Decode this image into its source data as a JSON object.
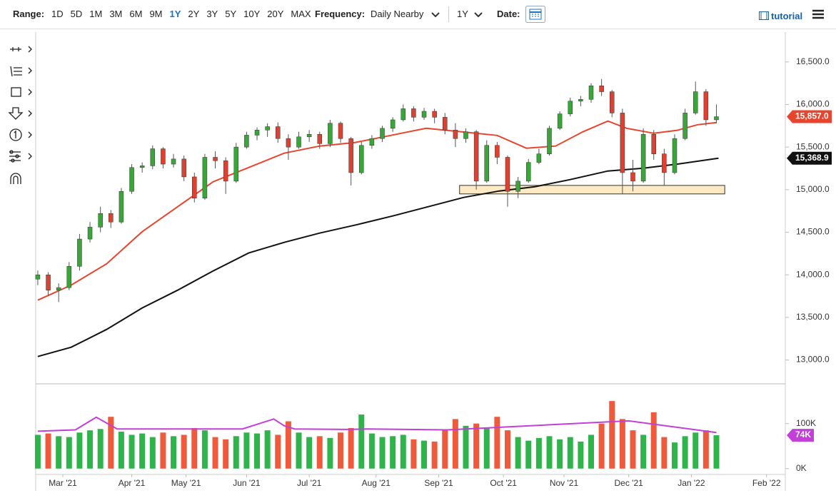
{
  "toolbar": {
    "range_label": "Range:",
    "ranges": [
      "1D",
      "5D",
      "1M",
      "3M",
      "6M",
      "9M",
      "1Y",
      "2Y",
      "3Y",
      "5Y",
      "10Y",
      "20Y",
      "MAX"
    ],
    "active_range": "1Y",
    "frequency_label": "Frequency:",
    "frequency": "Daily Nearby",
    "period": "1Y",
    "date_label": "Date:",
    "tutorial": "tutorial"
  },
  "chart_data": [
    {
      "type": "candlestick",
      "x": [
        2,
        7,
        12,
        17,
        22,
        27,
        32,
        37,
        42,
        47,
        52,
        57,
        62,
        67,
        72,
        77,
        82,
        87,
        92,
        97,
        102,
        107,
        112,
        117,
        122,
        127,
        132,
        137,
        142,
        147,
        152,
        157,
        162,
        167,
        172,
        177,
        182,
        187,
        192,
        197,
        202,
        207,
        212,
        217,
        222,
        227,
        232,
        237,
        242,
        247,
        252,
        257,
        262,
        267,
        272,
        277,
        282,
        287,
        292,
        297,
        302,
        307,
        312,
        317,
        322,
        327
      ],
      "open": [
        13950,
        14000,
        13820,
        13850,
        14100,
        14420,
        14560,
        14720,
        14620,
        14980,
        15260,
        15280,
        15480,
        15300,
        15360,
        15150,
        14900,
        15380,
        15340,
        15100,
        15500,
        15640,
        15700,
        15740,
        15600,
        15500,
        15620,
        15650,
        15540,
        15780,
        15600,
        15200,
        15520,
        15600,
        15720,
        15820,
        15950,
        15850,
        15920,
        15850,
        15700,
        15600,
        15680,
        15100,
        15520,
        15380,
        14980,
        15100,
        15320,
        15420,
        15720,
        15890,
        16040,
        16060,
        16220,
        16150,
        15900,
        15200,
        15100,
        15650,
        15420,
        15200,
        15600,
        15900,
        16150,
        15820
      ],
      "high": [
        14050,
        14030,
        13900,
        14150,
        14480,
        14620,
        14800,
        14760,
        15020,
        15300,
        15320,
        15520,
        15500,
        15420,
        15400,
        15200,
        15420,
        15450,
        15380,
        15550,
        15680,
        15730,
        15780,
        15790,
        15650,
        15680,
        15700,
        15680,
        15820,
        15800,
        15620,
        15560,
        15640,
        15750,
        15850,
        16000,
        15980,
        15960,
        15950,
        15900,
        15780,
        15720,
        15700,
        15580,
        15560,
        15400,
        15150,
        15360,
        15480,
        15750,
        15920,
        16080,
        16100,
        16250,
        16300,
        16170,
        15950,
        15350,
        15720,
        15700,
        15480,
        15650,
        15950,
        16270,
        16180,
        16000
      ],
      "low": [
        13880,
        13750,
        13680,
        13820,
        14050,
        14380,
        14500,
        14550,
        14600,
        14950,
        15200,
        15240,
        15250,
        15260,
        15100,
        14850,
        14880,
        15250,
        14950,
        15080,
        15480,
        15580,
        15620,
        15550,
        15350,
        15480,
        15560,
        15480,
        15500,
        15550,
        15050,
        15180,
        15480,
        15560,
        15680,
        15800,
        15800,
        15820,
        15780,
        15650,
        15500,
        15550,
        15000,
        15080,
        15300,
        14800,
        14900,
        15080,
        15300,
        15400,
        15700,
        15860,
        15980,
        16020,
        16100,
        15850,
        14950,
        14980,
        15080,
        15350,
        15050,
        15180,
        15580,
        15880,
        15750,
        15780
      ],
      "close": [
        14000,
        13820,
        13850,
        14100,
        14420,
        14560,
        14720,
        14620,
        14980,
        15260,
        15280,
        15480,
        15300,
        15360,
        15150,
        14900,
        15380,
        15340,
        15100,
        15500,
        15640,
        15700,
        15740,
        15600,
        15500,
        15620,
        15650,
        15540,
        15780,
        15600,
        15200,
        15520,
        15600,
        15720,
        15820,
        15950,
        15850,
        15920,
        15850,
        15700,
        15600,
        15680,
        15100,
        15520,
        15380,
        14980,
        15100,
        15320,
        15420,
        15720,
        15890,
        16040,
        16060,
        16220,
        16150,
        15900,
        15200,
        15100,
        15650,
        15420,
        15200,
        15600,
        15900,
        16150,
        15820,
        15857
      ],
      "up_color": "#3aa63a",
      "down_color": "#e0402f",
      "xlim": [
        1,
        360
      ],
      "xticks": [
        {
          "value": 14,
          "label": "Mar '21"
        },
        {
          "value": 47,
          "label": "Apr '21"
        },
        {
          "value": 73,
          "label": "May '21"
        },
        {
          "value": 102,
          "label": "Jun '21"
        },
        {
          "value": 132,
          "label": "Jul '21"
        },
        {
          "value": 164,
          "label": "Aug '21"
        },
        {
          "value": 194,
          "label": "Sep '21"
        },
        {
          "value": 225,
          "label": "Oct '21"
        },
        {
          "value": 254,
          "label": "Nov '21"
        },
        {
          "value": 285,
          "label": "Dec '21"
        },
        {
          "value": 315,
          "label": "Jan '22"
        },
        {
          "value": 351,
          "label": "Feb '22"
        }
      ],
      "ylim": [
        12720,
        16850
      ],
      "yticks": [
        {
          "value": 13000,
          "label": "13,000.0"
        },
        {
          "value": 13500,
          "label": "13,500.0"
        },
        {
          "value": 14000,
          "label": "14,000.0"
        },
        {
          "value": 14500,
          "label": "14,500.0"
        },
        {
          "value": 15000,
          "label": "15,000.0"
        },
        {
          "value": 15500,
          "label": "15,500.0"
        },
        {
          "value": 16000,
          "label": "16,000.0"
        },
        {
          "value": 16500,
          "label": "16,500.0"
        }
      ],
      "overlays": [
        {
          "color": "#e8452e",
          "x": [
            2,
            18,
            35,
            52,
            69,
            86,
            103,
            120,
            137,
            154,
            171,
            188,
            205,
            222,
            236,
            250,
            263,
            275,
            284,
            297,
            308,
            318,
            327
          ],
          "values": [
            13703,
            13879,
            14130,
            14507,
            14800,
            15093,
            15260,
            15428,
            15512,
            15554,
            15637,
            15721,
            15679,
            15637,
            15487,
            15512,
            15679,
            15805,
            15721,
            15662,
            15696,
            15763,
            15788
          ]
        },
        {
          "color": "#111111",
          "x": [
            2,
            18,
            35,
            52,
            69,
            86,
            103,
            120,
            137,
            155,
            172,
            189,
            206,
            223,
            240,
            257,
            275,
            292,
            309,
            328
          ],
          "values": [
            13041,
            13150,
            13359,
            13611,
            13820,
            14046,
            14256,
            14381,
            14490,
            14590,
            14691,
            14800,
            14909,
            14984,
            15034,
            15118,
            15219,
            15252,
            15302,
            15369
          ]
        }
      ],
      "zone": {
        "x": [
          204,
          331
        ],
        "y": [
          14950,
          15050
        ],
        "color": "#fde9c4"
      },
      "last_labels": [
        {
          "value": 15857,
          "label": "15,857.0",
          "color": "#e8452e"
        },
        {
          "value": 15368.9,
          "label": "15,368.9",
          "color": "#111111"
        }
      ]
    },
    {
      "type": "bar",
      "values": [
        75000,
        78000,
        72000,
        70000,
        80000,
        85000,
        88000,
        115000,
        82000,
        75000,
        78000,
        70000,
        80000,
        72000,
        75000,
        90000,
        85000,
        70000,
        65000,
        72000,
        80000,
        78000,
        85000,
        75000,
        105000,
        80000,
        70000,
        72000,
        68000,
        80000,
        90000,
        120000,
        78000,
        70000,
        72000,
        75000,
        65000,
        62000,
        60000,
        85000,
        110000,
        95000,
        100000,
        90000,
        115000,
        85000,
        70000,
        62000,
        68000,
        72000,
        65000,
        70000,
        60000,
        75000,
        100000,
        150000,
        110000,
        85000,
        75000,
        125000,
        70000,
        58000,
        72000,
        80000,
        85000,
        74000
      ],
      "up_color": "#2fb44c",
      "down_color": "#f05a3c",
      "ylim": [
        -13000,
        185000
      ],
      "yticks": [
        {
          "value": 0,
          "label": "0K"
        },
        {
          "value": 100000,
          "label": "100K"
        }
      ],
      "average": {
        "color": "#c23fd8",
        "x": [
          2,
          20,
          30,
          40,
          100,
          115,
          120,
          125,
          150,
          160,
          198,
          285,
          327
        ],
        "values": [
          83000,
          86000,
          114000,
          88000,
          88000,
          110000,
          95000,
          88000,
          87000,
          88000,
          86000,
          106000,
          80000
        ]
      },
      "current": {
        "value": 74000,
        "label": "74K",
        "color": "#c23fd8"
      }
    }
  ]
}
